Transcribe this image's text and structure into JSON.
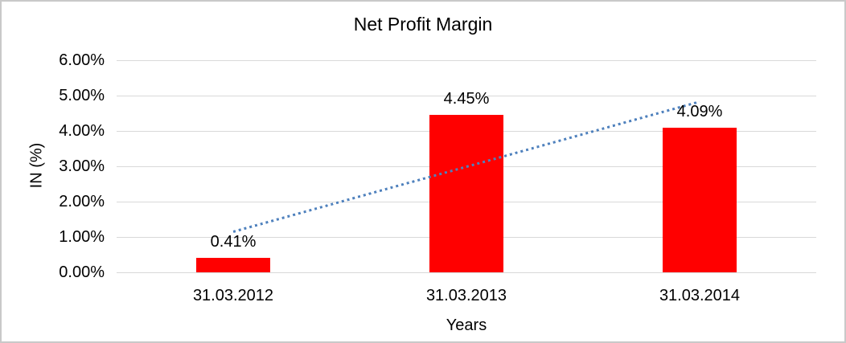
{
  "frame": {
    "background": "#FFFFFF",
    "border_color": "#C9C9C9"
  },
  "chart_data": {
    "type": "bar",
    "title": "Net Profit Margin",
    "categories": [
      "31.03.2012",
      "31.03.2013",
      "31.03.2014"
    ],
    "values": [
      0.41,
      4.45,
      4.09
    ],
    "data_labels": [
      "0.41%",
      "4.45%",
      "4.09%"
    ],
    "xlabel": "Years",
    "ylabel": "IN (%)",
    "ylim": [
      0,
      6
    ],
    "ytick_step": 1,
    "ytick_labels": [
      "0.00%",
      "1.00%",
      "2.00%",
      "3.00%",
      "4.00%",
      "5.00%",
      "6.00%"
    ],
    "grid": true,
    "legend": "none",
    "bar_color": "#FF0000",
    "gridline_color": "#D9D9D9",
    "text_color": "#000000",
    "trendline": {
      "type": "linear",
      "style": "dotted",
      "color": "#4F81BD",
      "start_category_index": 0,
      "start_value": 1.14,
      "end_category_index": 2,
      "end_value": 4.82
    }
  }
}
